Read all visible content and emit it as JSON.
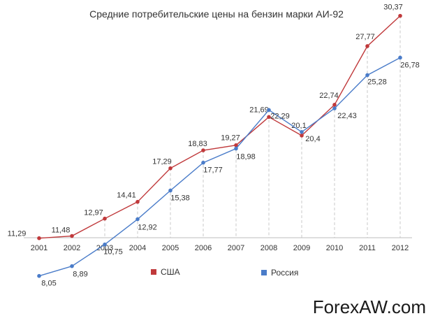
{
  "chart_data": {
    "type": "line",
    "title": "Средние потребительские цены на бензин марки АИ-92",
    "categories": [
      "2001",
      "2002",
      "2003",
      "2004",
      "2005",
      "2006",
      "2007",
      "2008",
      "2009",
      "2010",
      "2011",
      "2012"
    ],
    "series": [
      {
        "name": "США",
        "color": "#c0393b",
        "values": [
          11.29,
          11.48,
          12.97,
          14.41,
          17.29,
          18.83,
          19.27,
          21.69,
          20.1,
          22.74,
          27.77,
          30.37
        ],
        "labels": [
          "11,29",
          "11,48",
          "12,97",
          "14,41",
          "17,29",
          "18,83",
          "19,27",
          "21,69",
          "20,1",
          "22,74",
          "27,77",
          "30,37"
        ]
      },
      {
        "name": "Россия",
        "color": "#4a7cc9",
        "values": [
          8.05,
          8.89,
          10.75,
          12.92,
          15.38,
          17.77,
          18.98,
          22.29,
          20.4,
          22.43,
          25.28,
          26.78
        ],
        "labels": [
          "8,05",
          "8,89",
          "10,75",
          "12,92",
          "15,38",
          "17,77",
          "18,98",
          "22,29",
          "20,4",
          "22,43",
          "25,28",
          "26,78"
        ]
      }
    ],
    "ylim": [
      0,
      32
    ],
    "grid": false,
    "legend_position": "bottom"
  },
  "watermark": "ForexAW.com"
}
